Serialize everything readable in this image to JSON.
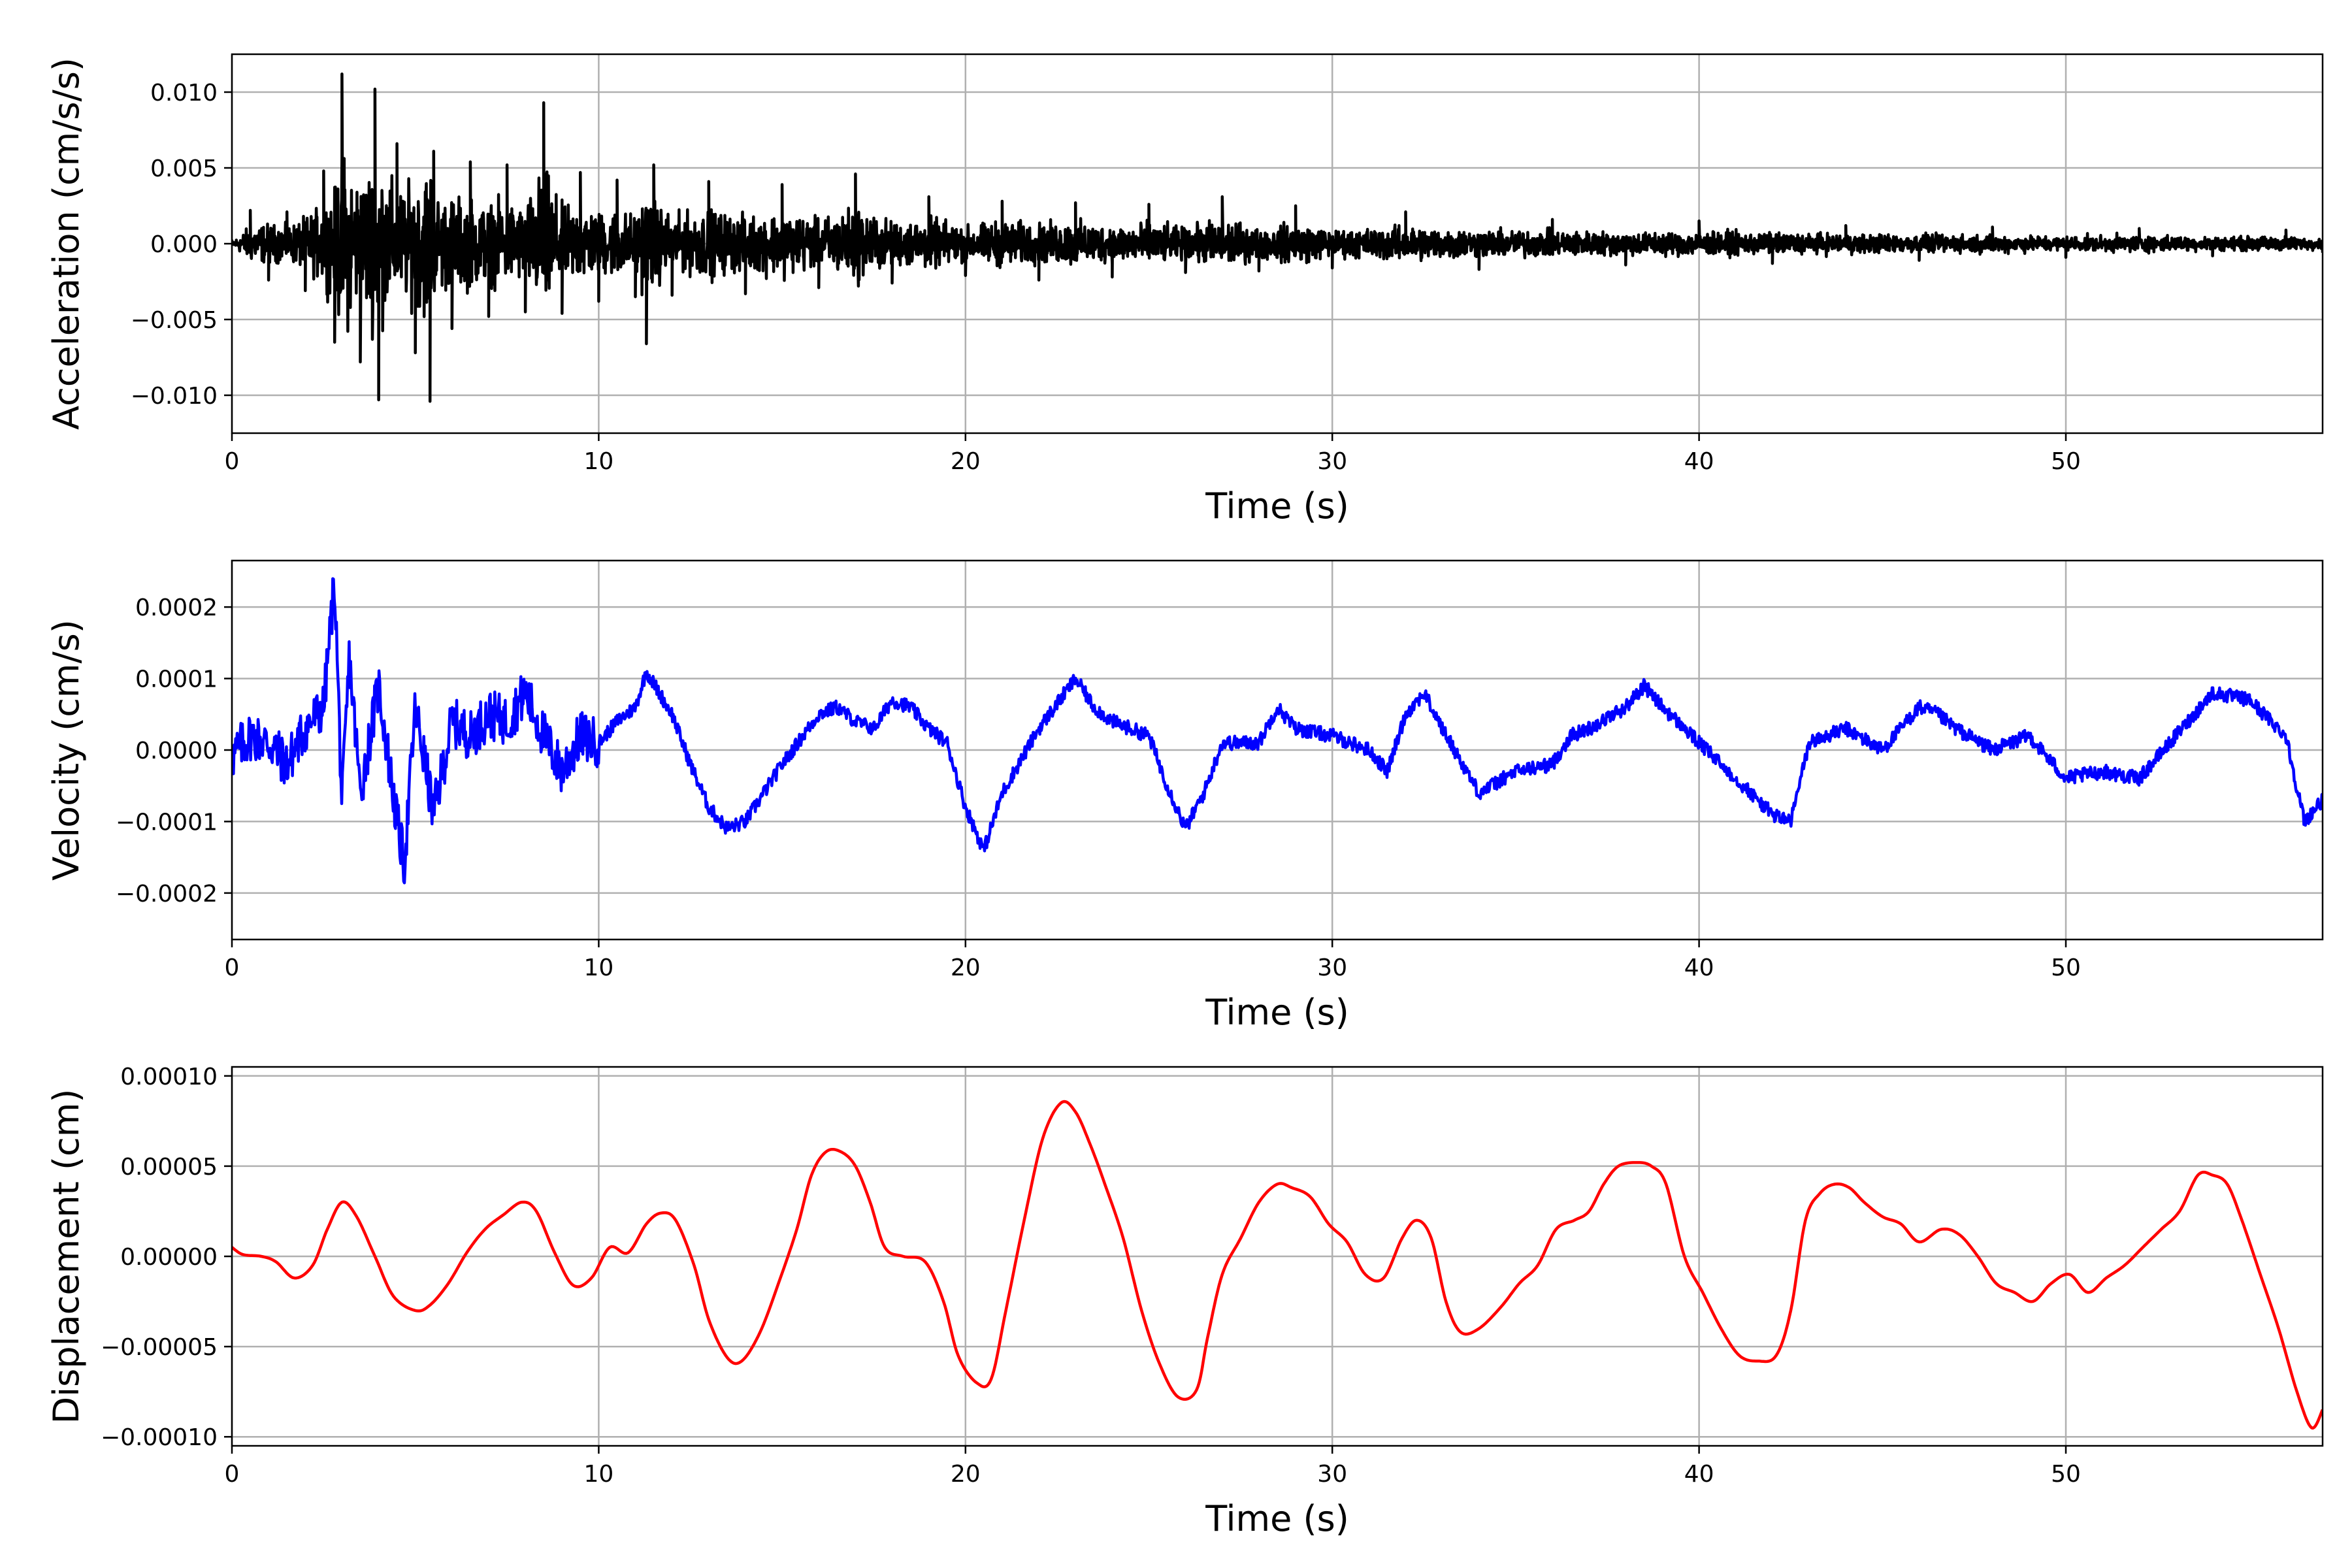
{
  "chart_data": [
    {
      "type": "line",
      "xlabel": "Time (s)",
      "ylabel": "Acceleration (cm/s/s)",
      "xlim": [
        0,
        57
      ],
      "ylim": [
        -0.0125,
        0.0125
      ],
      "xticks": [
        0,
        10,
        20,
        30,
        40,
        50
      ],
      "xtick_labels": [
        "0",
        "10",
        "20",
        "30",
        "40",
        "50"
      ],
      "yticks": [
        -0.01,
        -0.005,
        0.0,
        0.005,
        0.01
      ],
      "ytick_labels": [
        "−0.010",
        "−0.005",
        "0.000",
        "0.005",
        "0.010"
      ],
      "grid": true,
      "color": "#000000",
      "series": [
        {
          "x": [
            0,
            0.5,
            1,
            1.5,
            2,
            2.5,
            2.8,
            3,
            3.5,
            3.9,
            4,
            4.5,
            5,
            5.4,
            5.5,
            6,
            6.5,
            7,
            7.5,
            8,
            8.5,
            9,
            9.5,
            10,
            10.5,
            11,
            11.3,
            11.5,
            12,
            13,
            14,
            15,
            16,
            17,
            18,
            19,
            20,
            21,
            22,
            23,
            24,
            25,
            26,
            27,
            28,
            29,
            30,
            32,
            34,
            36,
            38,
            40,
            42,
            44,
            46,
            48,
            50,
            52,
            54,
            56,
            57
          ],
          "y": [
            0.0002,
            0.0022,
            -0.0024,
            0.0021,
            -0.0031,
            0.0048,
            -0.0065,
            0.0112,
            -0.0078,
            0.0102,
            -0.0103,
            0.0066,
            -0.0072,
            -0.0104,
            0.0061,
            -0.0056,
            0.0054,
            -0.0048,
            0.0052,
            -0.0045,
            0.0093,
            -0.0046,
            0.0047,
            -0.0038,
            0.0042,
            -0.0035,
            -0.0066,
            0.0052,
            -0.0034,
            0.0041,
            -0.0033,
            0.0039,
            -0.0029,
            0.0046,
            -0.0026,
            0.0031,
            -0.0021,
            0.0028,
            -0.0024,
            0.0027,
            -0.0022,
            0.0026,
            -0.0019,
            0.0031,
            -0.0018,
            0.0025,
            -0.0016,
            0.0021,
            -0.0017,
            0.0016,
            -0.0014,
            0.0015,
            -0.0013,
            0.0012,
            -0.0011,
            0.0011,
            -0.0009,
            0.001,
            -0.0008,
            0.0009,
            -0.0006
          ]
        }
      ]
    },
    {
      "type": "line",
      "xlabel": "Time (s)",
      "ylabel": "Velocity (cm/s)",
      "xlim": [
        0,
        57
      ],
      "ylim": [
        -0.000265,
        0.000265
      ],
      "xticks": [
        0,
        10,
        20,
        30,
        40,
        50
      ],
      "xtick_labels": [
        "0",
        "10",
        "20",
        "30",
        "40",
        "50"
      ],
      "yticks": [
        -0.0002,
        -0.0001,
        0.0,
        0.0001,
        0.0002
      ],
      "ytick_labels": [
        "−0.0002",
        "−0.0001",
        "0.0000",
        "0.0001",
        "0.0002"
      ],
      "grid": true,
      "color": "#0000ff",
      "series": [
        {
          "x": [
            0,
            0.5,
            1,
            1.5,
            2,
            2.5,
            2.8,
            3,
            3.2,
            3.5,
            4,
            4.5,
            4.7,
            5,
            5.5,
            6,
            6.5,
            7,
            7.5,
            8,
            8.5,
            9,
            9.5,
            10,
            10.5,
            11,
            11.3,
            12,
            12.5,
            13,
            13.5,
            14,
            14.5,
            15,
            16,
            16.5,
            17,
            17.5,
            18,
            18.5,
            19,
            19.5,
            20,
            20.5,
            21,
            22,
            23,
            23.5,
            24,
            25,
            25.5,
            26,
            26.5,
            27,
            28,
            28.5,
            29,
            30,
            31,
            31.5,
            32,
            32.5,
            33,
            34,
            35,
            36,
            36.5,
            37,
            38,
            38.5,
            39,
            40,
            41,
            42,
            42.5,
            43,
            44,
            45,
            46,
            46.5,
            47,
            48,
            49,
            50,
            51,
            52,
            53,
            54,
            55,
            56,
            56.5,
            57
          ],
          "y": [
            -1e-05,
            2e-05,
            1e-05,
            -2e-05,
            3e-05,
            6e-05,
            0.00024,
            -8e-05,
            0.00013,
            -6e-05,
            9e-05,
            -0.0001,
            -0.00016,
            6e-05,
            -9e-05,
            4e-05,
            2e-05,
            5e-05,
            4e-05,
            8e-05,
            2e-05,
            -3e-05,
            2e-05,
            1e-05,
            4e-05,
            6e-05,
            0.00011,
            5e-05,
            -2e-05,
            -8e-05,
            -0.00011,
            -0.0001,
            -6e-05,
            -2e-05,
            5e-05,
            6e-05,
            4e-05,
            3e-05,
            7e-05,
            6e-05,
            3e-05,
            1e-05,
            -8e-05,
            -0.00014,
            -6e-05,
            3e-05,
            0.0001,
            6e-05,
            4e-05,
            2e-05,
            -5e-05,
            -0.00011,
            -6e-05,
            1e-05,
            1e-05,
            6e-05,
            3e-05,
            2e-05,
            0.0,
            -3e-05,
            5e-05,
            8e-05,
            3e-05,
            -6e-05,
            -3e-05,
            -2e-05,
            2e-05,
            3e-05,
            6e-05,
            9e-05,
            6e-05,
            1e-05,
            -4e-05,
            -9e-05,
            -0.0001,
            1e-05,
            3e-05,
            0.0,
            6e-05,
            5e-05,
            3e-05,
            0.0,
            2e-05,
            -4e-05,
            -3e-05,
            -4e-05,
            2e-05,
            8e-05,
            7e-05,
            2e-05,
            -0.0001,
            -7e-05
          ]
        }
      ]
    },
    {
      "type": "line",
      "xlabel": "Time (s)",
      "ylabel": "Displacement (cm)",
      "xlim": [
        0,
        57
      ],
      "ylim": [
        -0.000105,
        0.000105
      ],
      "xticks": [
        0,
        10,
        20,
        30,
        40,
        50
      ],
      "xtick_labels": [
        "0",
        "10",
        "20",
        "30",
        "40",
        "50"
      ],
      "yticks": [
        -0.0001,
        -5e-05,
        0.0,
        5e-05,
        0.0001
      ],
      "ytick_labels": [
        "−0.00010",
        "−0.00005",
        "0.00000",
        "0.00005",
        "0.00010"
      ],
      "grid": true,
      "color": "#ff0000",
      "series": [
        {
          "x": [
            0,
            0.3,
            0.8,
            1.2,
            1.7,
            2.2,
            2.6,
            3.0,
            3.4,
            3.9,
            4.4,
            5.0,
            5.4,
            5.9,
            6.4,
            6.9,
            7.4,
            7.9,
            8.3,
            8.8,
            9.3,
            9.8,
            10.3,
            10.8,
            11.3,
            11.7,
            12.1,
            12.6,
            13.0,
            13.5,
            13.9,
            14.4,
            14.9,
            15.4,
            15.8,
            16.2,
            16.6,
            17.0,
            17.4,
            17.8,
            18.3,
            18.9,
            19.4,
            19.8,
            20.3,
            20.7,
            21.1,
            21.6,
            22.1,
            22.6,
            23.0,
            23.4,
            23.8,
            24.3,
            24.8,
            25.3,
            25.8,
            26.3,
            26.6,
            27.0,
            27.5,
            28.0,
            28.5,
            28.9,
            29.4,
            29.9,
            30.4,
            30.9,
            31.4,
            31.9,
            32.3,
            32.7,
            33.1,
            33.5,
            34.0,
            34.6,
            35.1,
            35.6,
            36.1,
            36.6,
            37.0,
            37.4,
            37.8,
            38.3,
            38.7,
            39.1,
            39.6,
            40.1,
            40.6,
            41.1,
            41.6,
            42.1,
            42.5,
            42.9,
            43.3,
            43.7,
            44.1,
            44.5,
            45.0,
            45.5,
            46.0,
            46.6,
            47.1,
            47.6,
            48.1,
            48.6,
            49.1,
            49.6,
            50.1,
            50.6,
            51.1,
            51.6,
            52.1,
            52.6,
            53.1,
            53.6,
            54.0,
            54.4,
            54.8,
            55.3,
            55.8,
            56.3,
            56.7,
            57.0
          ],
          "y": [
            5e-06,
            1e-06,
            0.0,
            -3e-06,
            -1.2e-05,
            -5e-06,
            1.5e-05,
            3e-05,
            2.2e-05,
            0.0,
            -2.2e-05,
            -3e-05,
            -2.7e-05,
            -1.5e-05,
            2e-06,
            1.5e-05,
            2.3e-05,
            3e-05,
            2.5e-05,
            2e-06,
            -1.6e-05,
            -1.2e-05,
            5e-06,
            2e-06,
            1.8e-05,
            2.4e-05,
            2e-05,
            -5e-06,
            -3.5e-05,
            -5.6e-05,
            -5.8e-05,
            -4.2e-05,
            -1.5e-05,
            1.5e-05,
            4.5e-05,
            5.8e-05,
            5.8e-05,
            5e-05,
            3e-05,
            5e-06,
            0.0,
            -3e-06,
            -2.5e-05,
            -5.5e-05,
            -7e-05,
            -6.8e-05,
            -3e-05,
            2e-05,
            6.5e-05,
            8.5e-05,
            8e-05,
            6.2e-05,
            4e-05,
            1e-05,
            -3e-05,
            -6e-05,
            -7.8e-05,
            -7.4e-05,
            -4.5e-05,
            -1e-05,
            1e-05,
            3e-05,
            4e-05,
            3.8e-05,
            3.3e-05,
            1.8e-05,
            8e-06,
            -1e-05,
            -1.2e-05,
            1e-05,
            2e-05,
            1e-05,
            -2.5e-05,
            -4.2e-05,
            -4e-05,
            -2.8e-05,
            -1.5e-05,
            -5e-06,
            1.5e-05,
            2e-05,
            2.5e-05,
            4e-05,
            5e-05,
            5.2e-05,
            5e-05,
            4e-05,
            0.0,
            -2e-05,
            -4e-05,
            -5.5e-05,
            -5.8e-05,
            -5.5e-05,
            -3e-05,
            2e-05,
            3.5e-05,
            4e-05,
            3.8e-05,
            3e-05,
            2.2e-05,
            1.8e-05,
            8e-06,
            1.5e-05,
            1.2e-05,
            0.0,
            -1.5e-05,
            -2e-05,
            -2.5e-05,
            -1.5e-05,
            -1e-05,
            -2e-05,
            -1.2e-05,
            -5e-06,
            5e-06,
            1.5e-05,
            2.5e-05,
            4.5e-05,
            4.5e-05,
            4e-05,
            2e-05,
            -1e-05,
            -4e-05,
            -7.5e-05,
            -9.5e-05,
            -8.5e-05
          ]
        }
      ]
    }
  ]
}
